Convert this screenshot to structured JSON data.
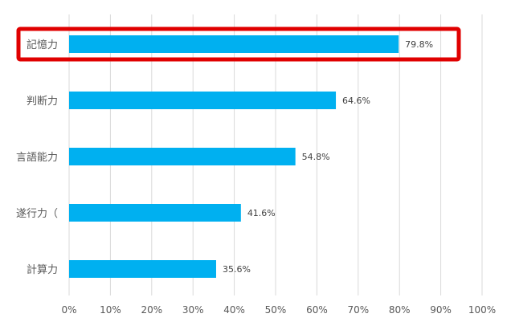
{
  "chart_data": {
    "type": "bar",
    "orientation": "horizontal",
    "categories": [
      "記憶力",
      "判断力",
      "言語能力",
      "遂行力（",
      "計算力"
    ],
    "values": [
      79.8,
      64.6,
      54.8,
      41.6,
      35.6
    ],
    "value_labels": [
      "79.8%",
      "64.6%",
      "54.8%",
      "41.6%",
      "35.6%"
    ],
    "x_ticks": [
      "0%",
      "10%",
      "20%",
      "30%",
      "40%",
      "50%",
      "60%",
      "70%",
      "80%",
      "90%",
      "100%"
    ],
    "xlim": [
      0,
      100
    ],
    "grid": "vertical",
    "highlight_category": "記憶力",
    "colors": {
      "bar": "#00B0F0",
      "highlight": "#E00000",
      "grid": "#D9D9D9",
      "text": "#595959"
    }
  }
}
